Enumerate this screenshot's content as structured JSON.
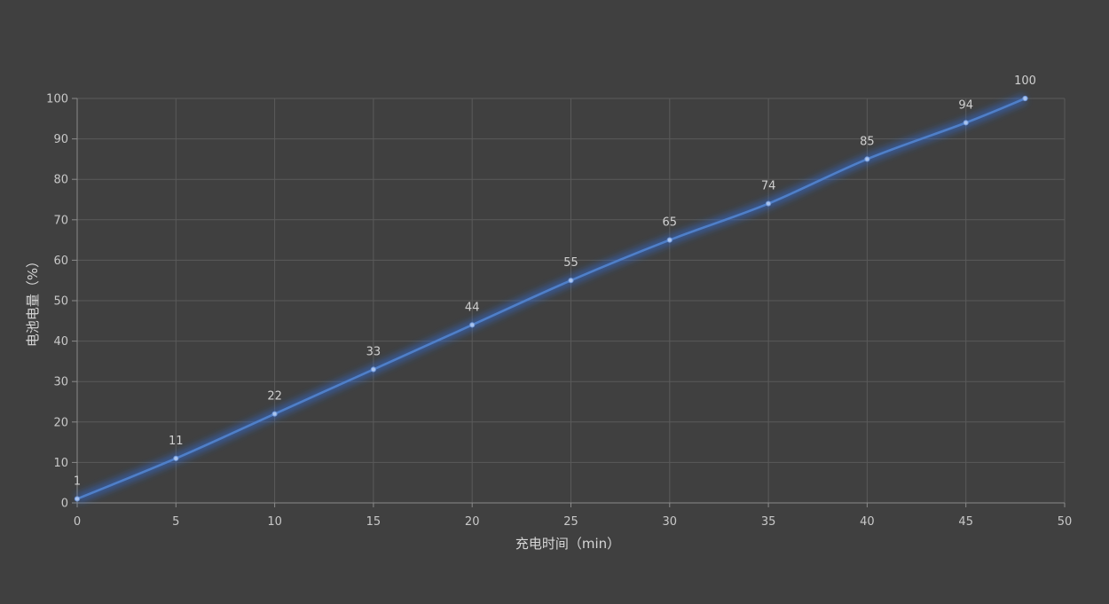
{
  "chart_data": {
    "type": "line",
    "title": "",
    "xlabel": "充电时间（min）",
    "ylabel": "电池电量（%）",
    "xlim": [
      0,
      50
    ],
    "ylim": [
      0,
      100
    ],
    "x_ticks": [
      0,
      5,
      10,
      15,
      20,
      25,
      30,
      35,
      40,
      45,
      50
    ],
    "y_ticks": [
      0,
      10,
      20,
      30,
      40,
      50,
      60,
      70,
      80,
      90,
      100
    ],
    "grid": true,
    "smooth": true,
    "series": [
      {
        "x": [
          0,
          5,
          10,
          15,
          20,
          25,
          30,
          35,
          40,
          45,
          48
        ],
        "y": [
          1,
          11,
          22,
          33,
          44,
          55,
          65,
          74,
          85,
          94,
          100
        ],
        "data_labels": [
          "1",
          "11",
          "22",
          "33",
          "44",
          "55",
          "65",
          "74",
          "85",
          "94",
          "100"
        ]
      }
    ],
    "colors": {
      "background": "#404040",
      "line": "#4f7fc8",
      "glow": "#2f6fe0",
      "marker": "#a9c4ee",
      "grid": "#5a5a5a",
      "text": "#c8c8c8"
    }
  }
}
